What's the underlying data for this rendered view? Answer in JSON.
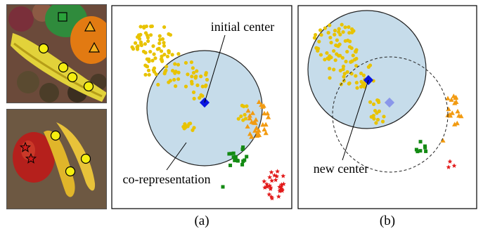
{
  "panels": [
    {
      "caption": "(a)",
      "labels": {
        "initial_center": "initial center",
        "co_representation": "co-representation"
      }
    },
    {
      "caption": "(b)",
      "labels": {
        "new_center": "new center"
      }
    }
  ],
  "photos": [
    {
      "subject": "banana and orange",
      "markers": [
        "circle",
        "circle",
        "circle",
        "circle",
        "square",
        "triangle",
        "triangle"
      ]
    },
    {
      "subject": "apple and bananas",
      "markers": [
        "circle",
        "circle",
        "circle",
        "star",
        "star"
      ]
    }
  ],
  "legend": {
    "circle": "#e8c300",
    "triangle": "#f29b11",
    "square": "#138a13",
    "star": "#e21b1b",
    "center": "#0a14e0",
    "region": "#c6dcea"
  }
}
